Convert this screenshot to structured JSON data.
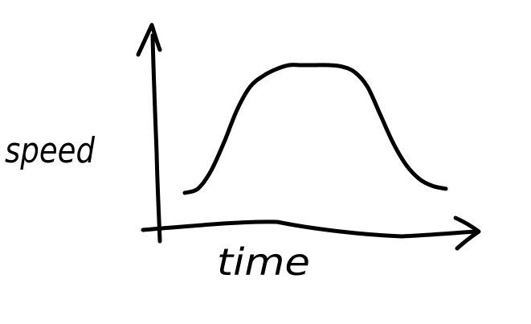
{
  "chart_data": {
    "type": "line",
    "title": "",
    "xlabel": "time",
    "ylabel": "speed",
    "x": [
      0,
      0.5,
      1,
      1.5,
      2,
      2.5,
      3,
      3.5,
      4,
      4.5,
      5,
      5.5,
      6,
      6.5,
      7,
      7.5,
      8,
      8.5,
      9,
      9.5,
      10
    ],
    "series": [
      {
        "values": [
          0.6,
          0.9,
          2.2,
          4.3,
          6.7,
          8.4,
          9.2,
          9.7,
          10,
          10,
          10,
          10,
          9.9,
          9.5,
          8.4,
          6.3,
          4.2,
          2.6,
          1.6,
          1.1,
          0.9
        ]
      }
    ],
    "xlim": [
      0,
      10
    ],
    "ylim": [
      0,
      10
    ],
    "grid": false,
    "legend": "none",
    "colors": {
      "ink": "#000000",
      "background": "#ffffff"
    }
  }
}
